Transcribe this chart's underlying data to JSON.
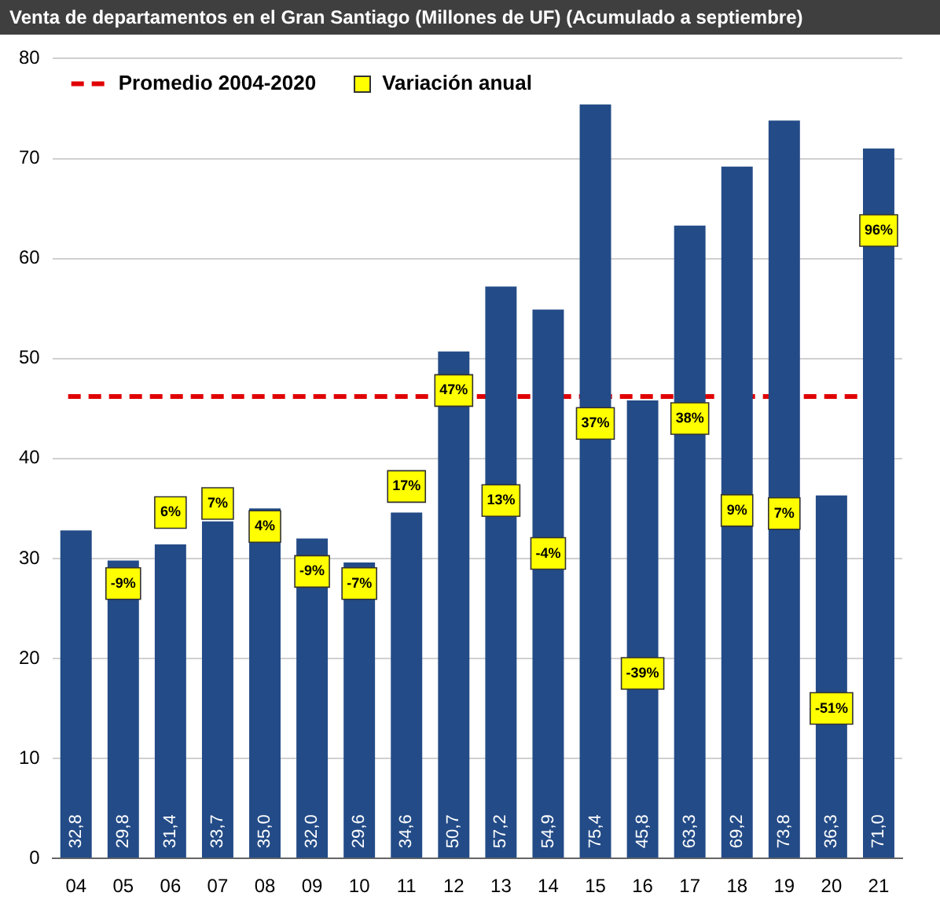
{
  "chart_data": {
    "type": "bar",
    "title": "Venta de departamentos en el Gran Santiago (Millones de UF)  (Acumulado a septiembre)",
    "categories": [
      "04",
      "05",
      "06",
      "07",
      "08",
      "09",
      "10",
      "11",
      "12",
      "13",
      "14",
      "15",
      "16",
      "17",
      "18",
      "19",
      "20",
      "21"
    ],
    "series": [
      {
        "color": "#234b87",
        "values": [
          32.8,
          29.8,
          31.4,
          33.7,
          35.0,
          32.0,
          29.6,
          34.6,
          50.7,
          57.2,
          54.9,
          75.4,
          45.8,
          63.3,
          69.2,
          73.8,
          36.3,
          71.0
        ],
        "value_labels": [
          "32,8",
          "29,8",
          "31,4",
          "33,7",
          "35,0",
          "32,0",
          "29,6",
          "34,6",
          "50,7",
          "57,2",
          "54,9",
          "75,4",
          "45,8",
          "63,3",
          "69,2",
          "73,8",
          "36,3",
          "71,0"
        ]
      }
    ],
    "annotations": [
      "Variación anual",
      {
        "text": "-9%",
        "x": "05",
        "y": 27.5
      },
      {
        "text": "6%",
        "x": "06",
        "y": 34.6
      },
      {
        "text": "7%",
        "x": "07",
        "y": 35.5
      },
      {
        "text": "4%",
        "x": "08",
        "y": 33.2
      },
      {
        "text": "-9%",
        "x": "09",
        "y": 28.7
      },
      {
        "text": "-7%",
        "x": "10",
        "y": 27.5
      },
      {
        "text": "17%",
        "x": "11",
        "y": 37.2
      },
      {
        "text": "47%",
        "x": "12",
        "y": 46.8
      },
      {
        "text": "13%",
        "x": "13",
        "y": 35.8
      },
      {
        "text": "-4%",
        "x": "14",
        "y": 30.5
      },
      {
        "text": "37%",
        "x": "15",
        "y": 43.5
      },
      {
        "text": "-39%",
        "x": "16",
        "y": 18.5
      },
      {
        "text": "38%",
        "x": "17",
        "y": 44
      },
      {
        "text": "9%",
        "x": "18",
        "y": 34.8
      },
      {
        "text": "7%",
        "x": "19",
        "y": 34.5
      },
      {
        "text": "-51%",
        "x": "20",
        "y": 15
      },
      {
        "text": "96%",
        "x": "21",
        "y": 62.8
      }
    ],
    "ylim": [
      0,
      80
    ],
    "yticks": [
      0,
      10,
      20,
      30,
      40,
      50,
      60,
      70,
      80
    ],
    "ref_lines": [
      {
        "axis": "y",
        "value": 46.2,
        "label": "Promedio 2004-2020",
        "color": "#e00000",
        "line_style": "dashed"
      }
    ],
    "grid": "y",
    "legend": "top left"
  }
}
